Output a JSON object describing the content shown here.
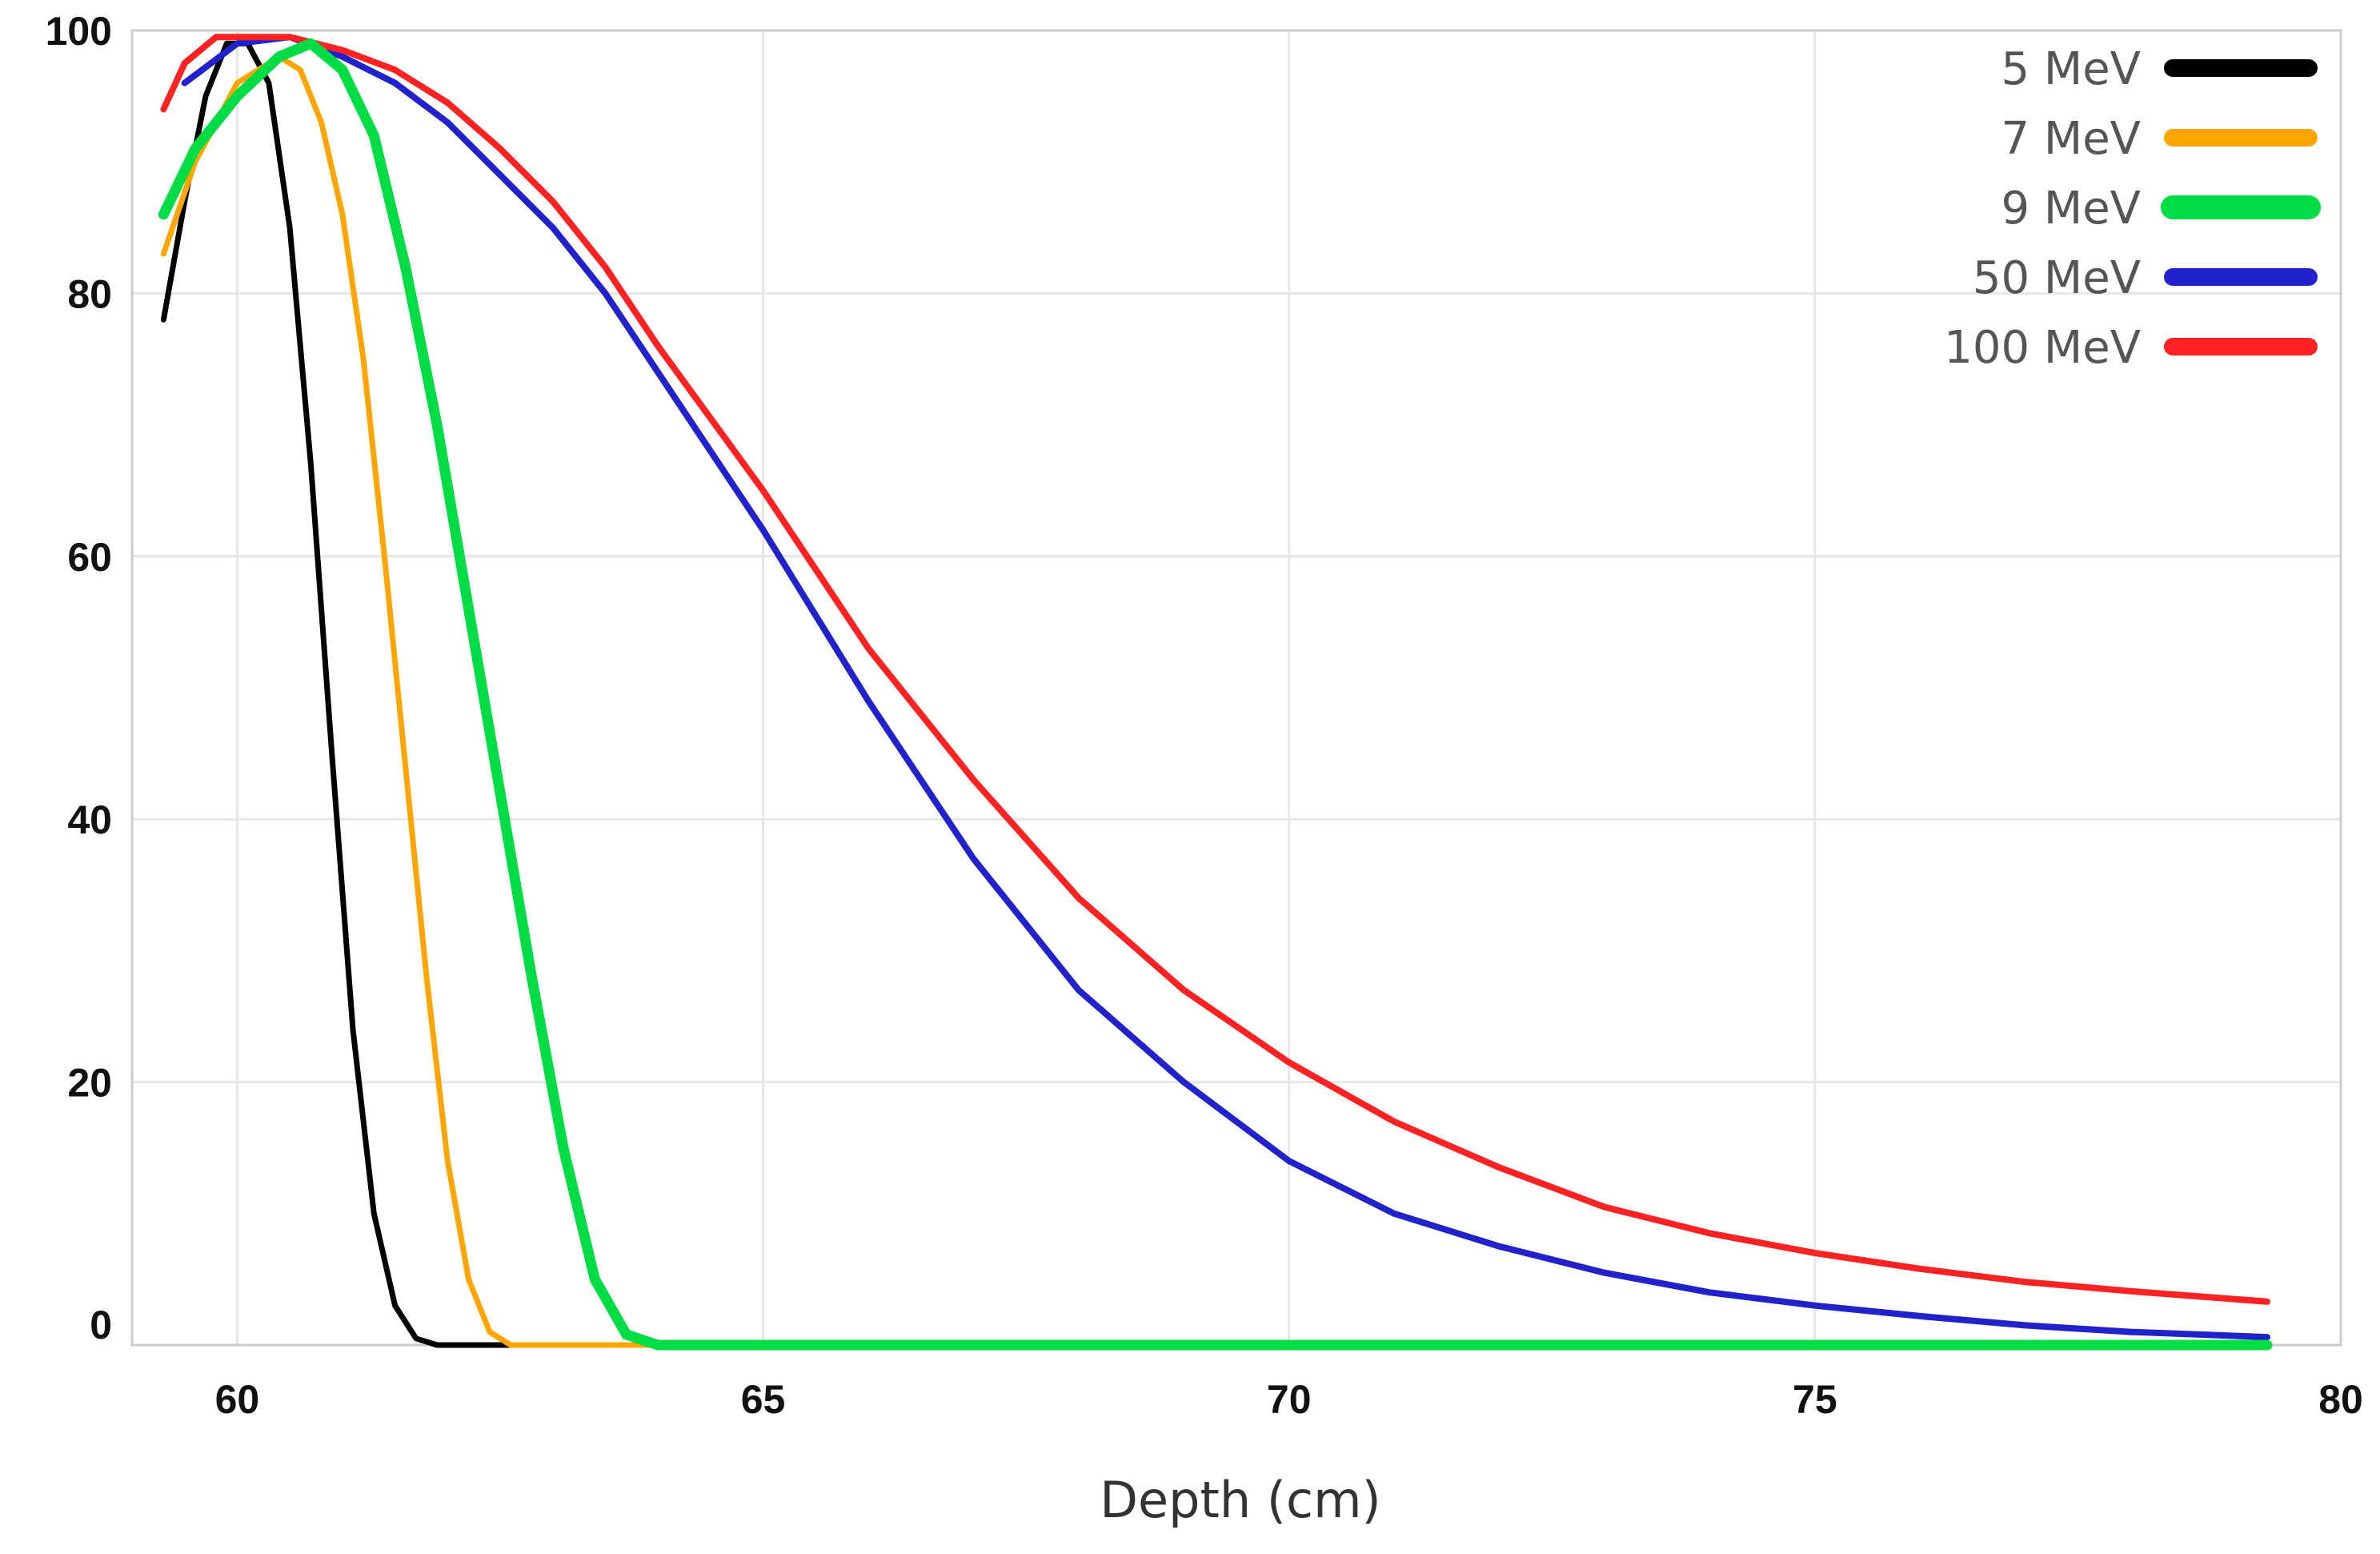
{
  "chart_data": {
    "type": "line",
    "title": "",
    "xlabel": "Depth (cm)",
    "ylabel": "",
    "xlim": [
      59,
      80
    ],
    "ylim": [
      0,
      100
    ],
    "xticks": [
      60,
      65,
      70,
      75,
      80
    ],
    "yticks": [
      0,
      20,
      40,
      60,
      80,
      100
    ],
    "grid": true,
    "legend_position": "top-right",
    "series": [
      {
        "name": "5 MeV",
        "color": "#000000",
        "x": [
          59.3,
          59.5,
          59.7,
          59.9,
          60.1,
          60.3,
          60.5,
          60.7,
          60.9,
          61.1,
          61.3,
          61.5,
          61.7,
          61.9,
          62.2,
          62.6,
          79.3
        ],
        "y": [
          78,
          87,
          95,
          99,
          99,
          96,
          85,
          67,
          45,
          24,
          10,
          3,
          0.5,
          0,
          0,
          0,
          0
        ]
      },
      {
        "name": "7 MeV",
        "color": "#FFA500",
        "x": [
          59.3,
          59.6,
          60.0,
          60.4,
          60.6,
          60.8,
          61.0,
          61.2,
          61.4,
          61.6,
          61.8,
          62.0,
          62.2,
          62.4,
          62.6,
          63.0,
          79.3
        ],
        "y": [
          83,
          90,
          96,
          98,
          97,
          93,
          86,
          75,
          60,
          44,
          28,
          14,
          5,
          1,
          0,
          0,
          0
        ]
      },
      {
        "name": "9 MeV",
        "color": "#00DD44",
        "x": [
          59.3,
          59.6,
          60.0,
          60.4,
          60.7,
          61.0,
          61.3,
          61.6,
          61.9,
          62.2,
          62.5,
          62.8,
          63.1,
          63.4,
          63.7,
          64.0,
          64.5,
          79.3
        ],
        "y": [
          86,
          91,
          95,
          98,
          99,
          97,
          92,
          82,
          70,
          56,
          42,
          28,
          15,
          5,
          0.8,
          0,
          0,
          0
        ]
      },
      {
        "name": "50 MeV",
        "color": "#2222CC",
        "x": [
          59.5,
          60,
          60.5,
          61,
          61.5,
          62,
          62.5,
          63,
          63.5,
          64,
          65,
          66,
          67,
          68,
          69,
          70,
          71,
          72,
          73,
          74,
          75,
          76,
          77,
          78,
          79.3
        ],
        "y": [
          96,
          99,
          99.5,
          98,
          96,
          93,
          89,
          85,
          80,
          74,
          62,
          49,
          37,
          27,
          20,
          14,
          10,
          7.5,
          5.5,
          4,
          3,
          2.2,
          1.5,
          1,
          0.6
        ]
      },
      {
        "name": "100 MeV",
        "color": "#FF2222",
        "x": [
          59.3,
          59.5,
          59.8,
          60,
          60.5,
          61,
          61.5,
          62,
          62.5,
          63,
          63.5,
          64,
          65,
          66,
          67,
          68,
          69,
          70,
          71,
          72,
          73,
          74,
          75,
          76,
          77,
          78,
          79.3
        ],
        "y": [
          94,
          97.5,
          99.5,
          99.5,
          99.5,
          98.5,
          97,
          94.5,
          91,
          87,
          82,
          76,
          65,
          53,
          43,
          34,
          27,
          21.5,
          17,
          13.5,
          10.5,
          8.5,
          7,
          5.8,
          4.8,
          4.1,
          3.3
        ]
      }
    ]
  }
}
